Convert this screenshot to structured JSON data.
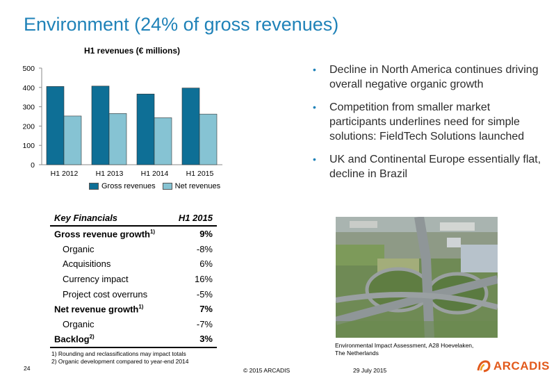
{
  "slide": {
    "title": "Environment (24% of gross revenues)",
    "page_number": "24",
    "copyright": "© 2015 ARCADIS",
    "date": "29 July 2015",
    "logo_text": "ARCADIS"
  },
  "chart_data": {
    "type": "bar",
    "title": "H1 revenues (€ millions)",
    "categories": [
      "H1 2012",
      "H1 2013",
      "H1 2014",
      "H1 2015"
    ],
    "series": [
      {
        "name": "Gross revenues",
        "values": [
          405,
          407,
          366,
          397
        ],
        "color": "#0e6f96"
      },
      {
        "name": "Net revenues",
        "values": [
          252,
          265,
          243,
          262
        ],
        "color": "#86c3d3"
      }
    ],
    "ylim": [
      0,
      500
    ],
    "yticks": [
      "0",
      "100",
      "200",
      "300",
      "400",
      "500"
    ],
    "legend": "bottom"
  },
  "bullets": [
    "Decline in North America continues driving overall negative organic growth",
    "Competition from smaller market participants underlines need for simple solutions: FieldTech Solutions launched",
    "UK and Continental Europe essentially flat, decline in Brazil"
  ],
  "table": {
    "header_label": "Key Financials",
    "header_value": "H1 2015",
    "rows": [
      {
        "label": "Gross revenue growth",
        "note": "1)",
        "value": "9%"
      },
      {
        "label": "Organic",
        "value": "-8%"
      },
      {
        "label": "Acquisitions",
        "value": "6%"
      },
      {
        "label": "Currency impact",
        "value": "16%"
      },
      {
        "label": "Project cost overruns",
        "value": "-5%"
      },
      {
        "label": "Net revenue growth",
        "note": "1)",
        "value": "7%"
      },
      {
        "label": "Organic",
        "value": "-7%"
      },
      {
        "label": "Backlog",
        "note": "2)",
        "value": "3%"
      }
    ]
  },
  "footnotes": [
    "1) Rounding and reclassifications may impact totals",
    "2) Organic development compared to year-end 2014"
  ],
  "photo": {
    "caption_line1": "Environmental Impact Assessment, A28 Hoevelaken,",
    "caption_line2": "The Netherlands"
  }
}
